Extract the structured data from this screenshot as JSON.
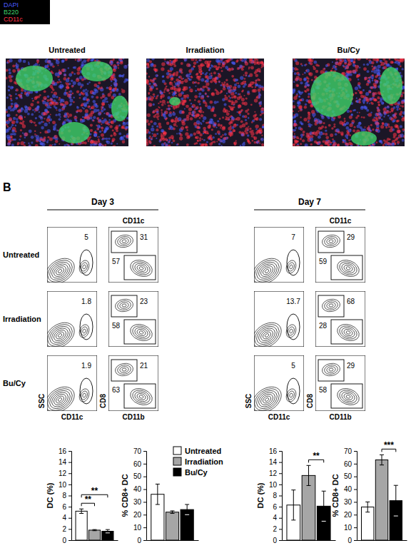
{
  "panel_a": {
    "legend": [
      {
        "label": "DAPI",
        "color": "#4a5cff"
      },
      {
        "label": "B220",
        "color": "#3fd36a"
      },
      {
        "label": "CD11c",
        "color": "#ff3347"
      }
    ],
    "images": [
      {
        "title": "Untreated"
      },
      {
        "title": "Irradiation"
      },
      {
        "title": "Bu/Cy"
      }
    ]
  },
  "panel_b": {
    "label": "B",
    "column_header": "CD11c",
    "axis_labels": {
      "dc_x": "CD11c",
      "dc_y": "SSC",
      "cd8_x": "CD11b",
      "cd8_y": "CD8"
    },
    "row_labels": [
      "Untreated",
      "Irradiation",
      "Bu/Cy"
    ],
    "days": [
      {
        "title": "Day 3",
        "dc_gate": [
          5,
          1.8,
          1.9
        ],
        "cd8_gate": [
          31,
          23,
          21
        ],
        "cd11b_gate": [
          57,
          58,
          63
        ]
      },
      {
        "title": "Day 7",
        "dc_gate": [
          7,
          13.7,
          5
        ],
        "cd8_gate": [
          29,
          68,
          29
        ],
        "cd11b_gate": [
          59,
          28,
          58
        ]
      }
    ]
  },
  "chart_data": [
    {
      "type": "bar",
      "y_label": "DC (%)",
      "categories": [
        null
      ],
      "ylim": [
        0,
        16
      ],
      "yticks": [
        0,
        2,
        4,
        6,
        8,
        10,
        12,
        14,
        16
      ],
      "tick_labels": "y",
      "series": [
        {
          "color": "#ffffff",
          "values": [
            5.2
          ],
          "errors": [
            0.4
          ]
        },
        {
          "color": "#a6a6a6",
          "values": [
            1.8
          ],
          "errors": [
            0.1
          ]
        },
        {
          "color": "#000000",
          "values": [
            1.6
          ],
          "errors": [
            0.3
          ]
        }
      ],
      "annotations": [
        {
          "text": "**",
          "between": [
            0,
            1
          ]
        },
        {
          "text": "**",
          "between": [
            0,
            2
          ]
        }
      ]
    },
    {
      "type": "bar",
      "y_label": "% CD8+ DC",
      "categories": [
        null
      ],
      "ylim": [
        0,
        70
      ],
      "yticks": [
        0,
        10,
        20,
        30,
        40,
        50,
        60,
        70
      ],
      "tick_labels": "y",
      "legend": "right",
      "series": [
        {
          "name": "Untreated",
          "color": "#ffffff",
          "values": [
            36
          ],
          "errors": [
            8
          ]
        },
        {
          "name": "Irradiation",
          "color": "#a6a6a6",
          "values": [
            22
          ],
          "errors": [
            1
          ]
        },
        {
          "name": "Bu/Cy",
          "color": "#000000",
          "values": [
            24
          ],
          "errors": [
            4
          ]
        }
      ]
    },
    {
      "type": "bar",
      "y_label": "DC (%)",
      "categories": [
        null
      ],
      "ylim": [
        0,
        16
      ],
      "yticks": [
        0,
        2,
        4,
        6,
        8,
        10,
        12,
        14,
        16
      ],
      "tick_labels": "y",
      "series": [
        {
          "color": "#ffffff",
          "values": [
            6.3
          ],
          "errors": [
            2.7
          ]
        },
        {
          "color": "#a6a6a6",
          "values": [
            11.6
          ],
          "errors": [
            1.8
          ]
        },
        {
          "color": "#000000",
          "values": [
            6.1
          ],
          "errors": [
            2.7
          ]
        }
      ],
      "annotations": [
        {
          "text": "**",
          "between": [
            1,
            2
          ]
        }
      ]
    },
    {
      "type": "bar",
      "y_label": "% CD8+ DC",
      "categories": [
        null
      ],
      "ylim": [
        0,
        70
      ],
      "yticks": [
        0,
        10,
        20,
        30,
        40,
        50,
        60,
        70
      ],
      "tick_labels": "y",
      "series": [
        {
          "color": "#ffffff",
          "values": [
            26
          ],
          "errors": [
            4
          ]
        },
        {
          "color": "#a6a6a6",
          "values": [
            63
          ],
          "errors": [
            4
          ]
        },
        {
          "color": "#000000",
          "values": [
            31
          ],
          "errors": [
            12
          ]
        }
      ],
      "annotations": [
        {
          "text": "***",
          "between": [
            1,
            2
          ]
        }
      ]
    }
  ]
}
